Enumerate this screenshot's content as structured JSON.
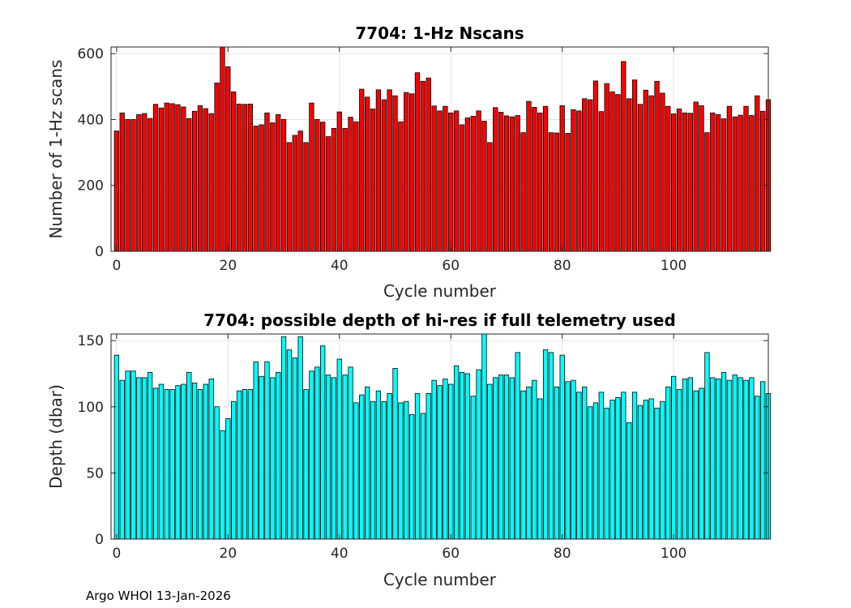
{
  "footer": "Argo WHOI 13-Jan-2026",
  "chart_data": [
    {
      "type": "bar",
      "title": "7704: 1-Hz Nscans",
      "xlabel": "Cycle number",
      "ylabel": "Number of 1-Hz scans",
      "xlim": [
        -1,
        117
      ],
      "ylim": [
        0,
        620
      ],
      "xticks": [
        0,
        20,
        40,
        60,
        80,
        100
      ],
      "yticks": [
        0,
        200,
        400,
        600
      ],
      "grid": true,
      "bar_color": "#ff0000",
      "x_start": 0,
      "values": [
        365,
        420,
        400,
        400,
        415,
        418,
        403,
        446,
        435,
        450,
        448,
        445,
        438,
        403,
        425,
        442,
        433,
        418,
        511,
        620,
        560,
        484,
        447,
        446,
        447,
        380,
        384,
        420,
        390,
        415,
        400,
        330,
        352,
        365,
        330,
        450,
        400,
        392,
        348,
        373,
        423,
        373,
        407,
        393,
        492,
        468,
        432,
        490,
        460,
        490,
        472,
        393,
        482,
        478,
        542,
        516,
        526,
        441,
        426,
        440,
        420,
        426,
        384,
        405,
        410,
        426,
        395,
        330,
        436,
        422,
        411,
        408,
        412,
        360,
        455,
        437,
        420,
        440,
        360,
        359,
        442,
        358,
        430,
        426,
        463,
        460,
        517,
        424,
        509,
        484,
        476,
        576,
        463,
        520,
        446,
        489,
        472,
        516,
        480,
        440,
        417,
        432,
        420,
        419,
        453,
        442,
        360,
        420,
        415,
        402,
        440,
        408,
        413,
        440,
        412,
        472,
        425,
        460
      ]
    },
    {
      "type": "bar",
      "title": "7704: possible depth of hi-res if full telemetry used",
      "xlabel": "Cycle number",
      "ylabel": "Depth (dbar)",
      "xlim": [
        -1,
        117
      ],
      "ylim": [
        0,
        155
      ],
      "xticks": [
        0,
        20,
        40,
        60,
        80,
        100
      ],
      "yticks": [
        0,
        50,
        100,
        150
      ],
      "grid": true,
      "bar_color": "#00ffff",
      "x_start": 0,
      "values": [
        139,
        120,
        127,
        127,
        122,
        122,
        126,
        114,
        117,
        113,
        113,
        116,
        117,
        126,
        118,
        113,
        117,
        121,
        100,
        82,
        91,
        104,
        112,
        113,
        113,
        134,
        123,
        134,
        122,
        126,
        153,
        143,
        137,
        153,
        113,
        127,
        130,
        146,
        124,
        122,
        136,
        124,
        130,
        103,
        109,
        115,
        104,
        112,
        104,
        110,
        129,
        103,
        104,
        94,
        110,
        95,
        110,
        120,
        116,
        121,
        117,
        131,
        126,
        125,
        108,
        128,
        155,
        117,
        122,
        124,
        124,
        122,
        141,
        112,
        115,
        120,
        106,
        143,
        141,
        115,
        139,
        119,
        120,
        111,
        115,
        100,
        103,
        111,
        99,
        105,
        107,
        111,
        88,
        111,
        101,
        105,
        106,
        99,
        104,
        115,
        123,
        113,
        121,
        122,
        112,
        114,
        141,
        122,
        121,
        126,
        120,
        124,
        122,
        120,
        122,
        108,
        119,
        110
      ]
    }
  ]
}
